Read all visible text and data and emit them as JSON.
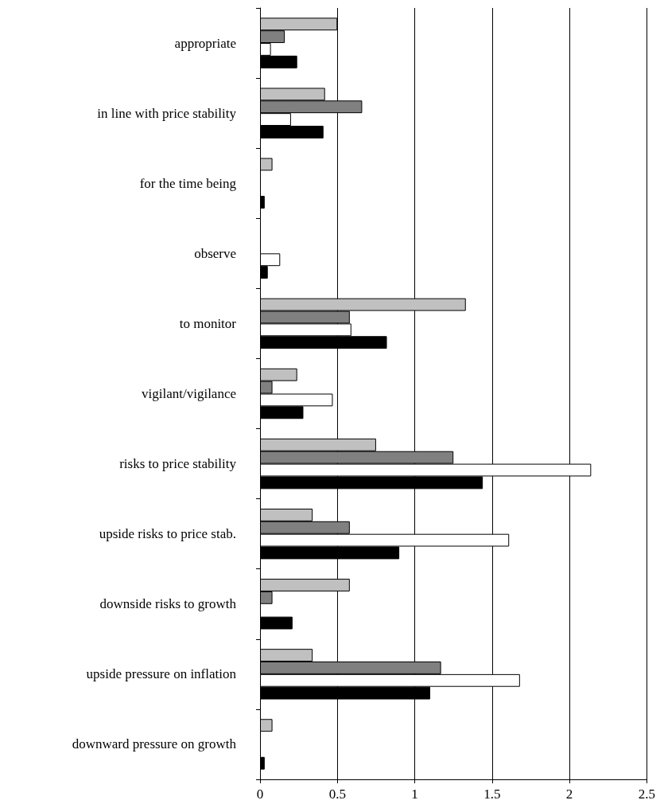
{
  "chart_data": {
    "type": "bar",
    "orientation": "horizontal",
    "categories": [
      "appropriate",
      "in line with price stability",
      "for the time being",
      "observe",
      "to monitor",
      "vigilant/vigilance",
      "risks to price stability",
      "upside risks to price stab.",
      "downside risks to growth",
      "upside pressure on inflation",
      "downward pressure on growth"
    ],
    "series": [
      {
        "color": "#c0c0c0",
        "values": [
          0.5,
          0.42,
          0.08,
          0,
          1.33,
          0.24,
          0.75,
          0.34,
          0.58,
          0.34,
          0.08
        ]
      },
      {
        "color": "#808080",
        "values": [
          0.16,
          0.66,
          0,
          0,
          0.58,
          0.08,
          1.25,
          0.58,
          0.08,
          1.17,
          0
        ]
      },
      {
        "color": "#ffffff",
        "values": [
          0.07,
          0.2,
          0,
          0.13,
          0.59,
          0.47,
          2.14,
          1.61,
          0,
          1.68,
          0
        ]
      },
      {
        "color": "#000000",
        "values": [
          0.24,
          0.41,
          0.03,
          0.05,
          0.82,
          0.28,
          1.44,
          0.9,
          0.21,
          1.1,
          0.03
        ]
      }
    ],
    "xlim": [
      0,
      2.5
    ],
    "xticks": [
      0,
      0.5,
      1,
      1.5,
      2,
      2.5
    ],
    "grid": "x"
  }
}
